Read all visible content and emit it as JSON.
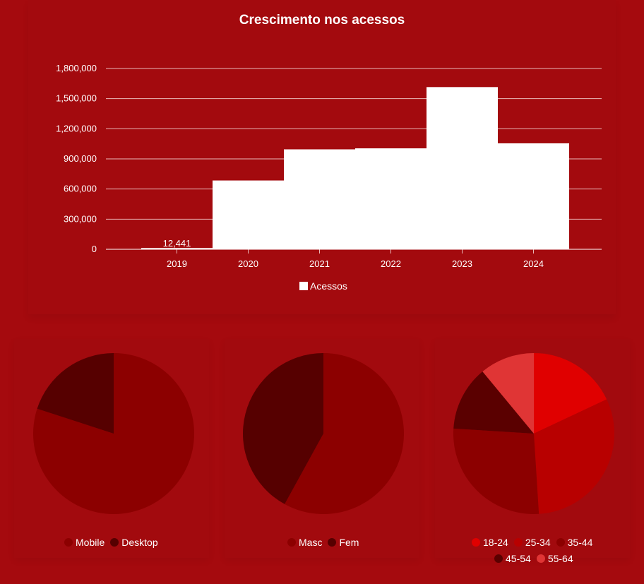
{
  "title": "Crescimento nos acessos",
  "chart_data": [
    {
      "type": "bar",
      "categories": [
        "2019",
        "2020",
        "2021",
        "2022",
        "2023",
        "2024"
      ],
      "series": [
        {
          "name": "Acessos",
          "values": [
            12441,
            685000,
            995000,
            1005000,
            1615000,
            1055000
          ]
        }
      ],
      "data_labels": {
        "2019": "12,441"
      },
      "y_ticks": [
        "0",
        "300,000",
        "600,000",
        "900,000",
        "1,200,000",
        "1,500,000",
        "1,800,000"
      ],
      "ylim": [
        0,
        1800000
      ],
      "bar_color": "#ffffff",
      "grid": true,
      "legend": "bottom"
    },
    {
      "type": "pie",
      "labels": [
        "Mobile",
        "Desktop"
      ],
      "values": [
        80,
        20
      ],
      "colors": [
        "#8c0000",
        "#560000"
      ],
      "legend": "bottom"
    },
    {
      "type": "pie",
      "labels": [
        "Masc",
        "Fem"
      ],
      "values": [
        58,
        42
      ],
      "colors": [
        "#8c0000",
        "#560000"
      ],
      "legend": "bottom"
    },
    {
      "type": "pie",
      "labels": [
        "18-24",
        "25-34",
        "35-44",
        "45-54",
        "55-64"
      ],
      "values": [
        18,
        31,
        27,
        13,
        11
      ],
      "colors": [
        "#e00000",
        "#b80000",
        "#8c0000",
        "#5a0000",
        "#e03535"
      ],
      "legend": "bottom"
    }
  ]
}
